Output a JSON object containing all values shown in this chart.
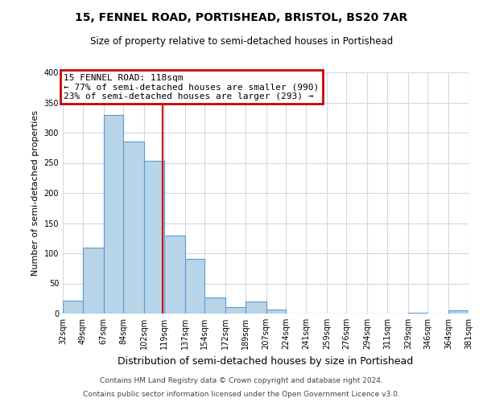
{
  "title": "15, FENNEL ROAD, PORTISHEAD, BRISTOL, BS20 7AR",
  "subtitle": "Size of property relative to semi-detached houses in Portishead",
  "xlabel": "Distribution of semi-detached houses by size in Portishead",
  "ylabel": "Number of semi-detached properties",
  "bar_edges": [
    32,
    49,
    67,
    84,
    102,
    119,
    137,
    154,
    172,
    189,
    207,
    224,
    241,
    259,
    276,
    294,
    311,
    329,
    346,
    364,
    381
  ],
  "bar_heights": [
    22,
    110,
    330,
    285,
    253,
    130,
    91,
    27,
    11,
    20,
    7,
    0,
    0,
    0,
    0,
    0,
    0,
    2,
    0,
    5
  ],
  "bar_color": "#b8d4e8",
  "bar_edge_color": "#5b9bd5",
  "property_value": 118,
  "annotation_title": "15 FENNEL ROAD: 118sqm",
  "annotation_line1": "← 77% of semi-detached houses are smaller (990)",
  "annotation_line2": "23% of semi-detached houses are larger (293) →",
  "annotation_box_color": "#cc0000",
  "vline_color": "#cc0000",
  "ylim": [
    0,
    400
  ],
  "yticks": [
    0,
    50,
    100,
    150,
    200,
    250,
    300,
    350,
    400
  ],
  "tick_labels": [
    "32sqm",
    "49sqm",
    "67sqm",
    "84sqm",
    "102sqm",
    "119sqm",
    "137sqm",
    "154sqm",
    "172sqm",
    "189sqm",
    "207sqm",
    "224sqm",
    "241sqm",
    "259sqm",
    "276sqm",
    "294sqm",
    "311sqm",
    "329sqm",
    "346sqm",
    "364sqm",
    "381sqm"
  ],
  "footnote1": "Contains HM Land Registry data © Crown copyright and database right 2024.",
  "footnote2": "Contains public sector information licensed under the Open Government Licence v3.0.",
  "bg_color": "#ffffff",
  "grid_color": "#d0d8e4"
}
